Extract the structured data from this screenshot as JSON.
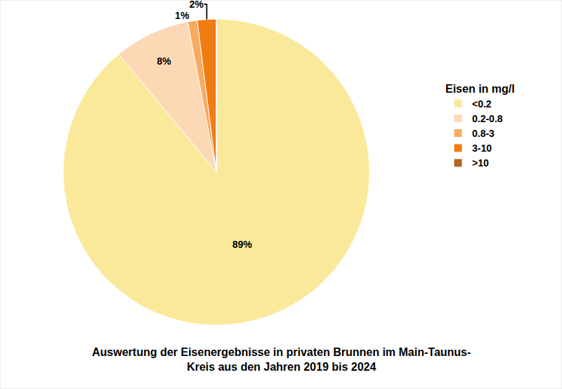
{
  "chart_data": {
    "type": "pie",
    "title": "Auswertung der Eisenergebnisse in privaten Brunnen im Main-Taunus-\nKreis aus den Jahren 2019 bis 2024",
    "legend_title": "Eisen in mg/l",
    "categories": [
      "<0.2",
      "0.2-0.8",
      "0.8-3",
      "3-10",
      ">10"
    ],
    "values": [
      89,
      8,
      1,
      2,
      0
    ],
    "value_labels": [
      "89%",
      "8%",
      "1%",
      "2%",
      null
    ],
    "colors": [
      "#fae99b",
      "#fdd8b5",
      "#f8ab5e",
      "#f07d11",
      "#b4661f"
    ],
    "data_labels": true,
    "legend": "right"
  }
}
